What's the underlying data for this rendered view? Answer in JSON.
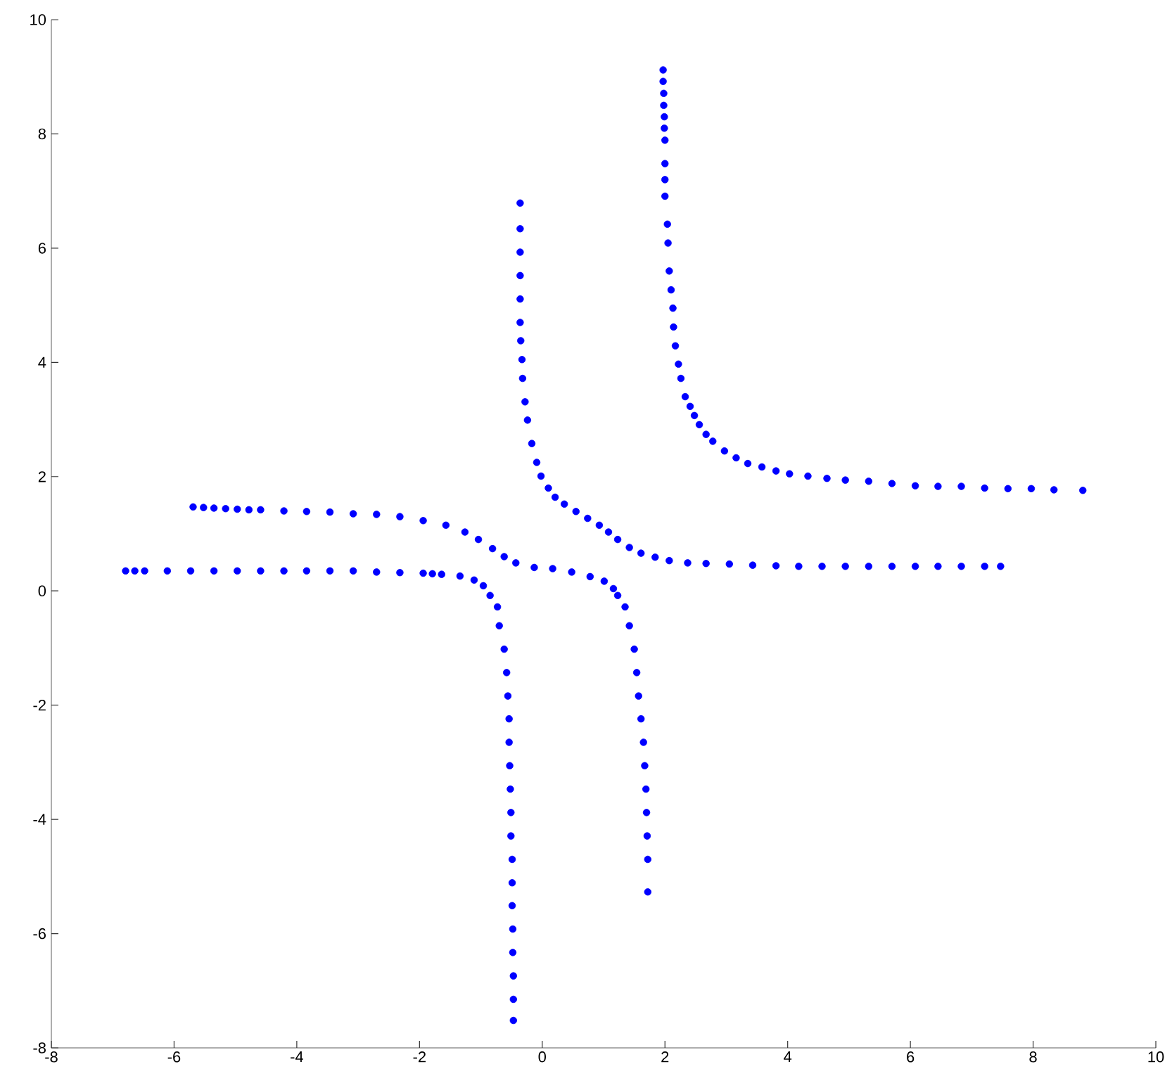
{
  "chart_data": {
    "type": "scatter",
    "marker": "circle",
    "xlim": [
      -8,
      10
    ],
    "ylim": [
      -8,
      10
    ],
    "xticks": [
      -8,
      -6,
      -4,
      -2,
      0,
      2,
      4,
      6,
      8,
      10
    ],
    "yticks": [
      -8,
      -6,
      -4,
      -2,
      0,
      2,
      4,
      6,
      8,
      10
    ],
    "series": [
      {
        "color": "#0000ff",
        "x": [
          1.97,
          1.97,
          1.98,
          1.98,
          1.99,
          1.99,
          2.0,
          2.0,
          2.0,
          2.0,
          2.04,
          2.05,
          2.07,
          2.1,
          2.13,
          2.14,
          2.17,
          2.22,
          2.26,
          2.33,
          2.41,
          2.48,
          2.56,
          2.67,
          2.78,
          2.97,
          3.16,
          3.35,
          3.58,
          3.81,
          4.03,
          4.33,
          4.64,
          4.94,
          5.32,
          5.7,
          6.08,
          6.45,
          6.83,
          7.21,
          7.59,
          7.97,
          8.34,
          8.81
        ],
        "values": [
          9.12,
          8.92,
          8.71,
          8.5,
          8.3,
          8.1,
          7.89,
          7.48,
          7.2,
          6.91,
          6.42,
          6.09,
          5.6,
          5.27,
          4.95,
          4.62,
          4.29,
          3.97,
          3.72,
          3.4,
          3.23,
          3.07,
          2.91,
          2.74,
          2.62,
          2.45,
          2.33,
          2.23,
          2.17,
          2.1,
          2.05,
          2.01,
          1.97,
          1.94,
          1.92,
          1.88,
          1.84,
          1.83,
          1.83,
          1.8,
          1.79,
          1.79,
          1.77,
          1.76
        ]
      },
      {
        "color": "#0000ff",
        "x": [
          -0.36,
          -0.36,
          -0.36,
          -0.36,
          -0.36,
          -0.36,
          -0.35,
          -0.33,
          -0.32,
          -0.28,
          -0.24,
          -0.17,
          -0.09,
          -0.02,
          0.1,
          0.21,
          0.36,
          0.55,
          0.74,
          0.93,
          1.08,
          1.23,
          1.42,
          1.61,
          1.84,
          2.07,
          2.37,
          2.67,
          3.05,
          3.43,
          3.81,
          4.18,
          4.56,
          4.94,
          5.32,
          5.7,
          6.08,
          6.45,
          6.83,
          7.21,
          7.47
        ],
        "values": [
          6.79,
          6.34,
          5.93,
          5.52,
          5.11,
          4.7,
          4.38,
          4.05,
          3.72,
          3.31,
          2.99,
          2.58,
          2.25,
          2.01,
          1.8,
          1.64,
          1.52,
          1.39,
          1.27,
          1.15,
          1.03,
          0.9,
          0.76,
          0.66,
          0.59,
          0.53,
          0.49,
          0.48,
          0.47,
          0.45,
          0.44,
          0.43,
          0.43,
          0.43,
          0.43,
          0.43,
          0.43,
          0.43,
          0.43,
          0.43,
          0.43
        ]
      },
      {
        "color": "#0000ff",
        "x": [
          -5.69,
          -5.52,
          -5.35,
          -5.16,
          -4.97,
          -4.78,
          -4.59,
          -4.21,
          -3.84,
          -3.46,
          -3.08,
          -2.7,
          -2.32,
          -1.94,
          -1.57,
          -1.26,
          -1.04,
          -0.81,
          -0.62,
          -0.43,
          -0.13,
          0.17,
          0.48,
          0.78,
          1.01,
          1.16,
          1.23,
          1.35,
          1.42,
          1.5,
          1.54,
          1.57,
          1.61,
          1.65,
          1.67,
          1.69,
          1.7,
          1.71,
          1.72,
          1.72
        ],
        "values": [
          1.47,
          1.46,
          1.45,
          1.44,
          1.43,
          1.42,
          1.42,
          1.4,
          1.39,
          1.38,
          1.35,
          1.34,
          1.3,
          1.23,
          1.15,
          1.03,
          0.9,
          0.74,
          0.6,
          0.49,
          0.41,
          0.39,
          0.33,
          0.25,
          0.17,
          0.04,
          -0.08,
          -0.28,
          -0.61,
          -1.02,
          -1.43,
          -1.84,
          -2.24,
          -2.65,
          -3.06,
          -3.47,
          -3.88,
          -4.29,
          -4.7,
          -5.27
        ]
      },
      {
        "color": "#0000ff",
        "x": [
          -6.79,
          -6.64,
          -6.48,
          -6.11,
          -5.73,
          -5.35,
          -4.97,
          -4.59,
          -4.21,
          -3.84,
          -3.46,
          -3.08,
          -2.7,
          -2.32,
          -1.94,
          -1.79,
          -1.64,
          -1.34,
          -1.11,
          -0.96,
          -0.85,
          -0.73,
          -0.7,
          -0.62,
          -0.58,
          -0.56,
          -0.54,
          -0.54,
          -0.53,
          -0.52,
          -0.51,
          -0.51,
          -0.49,
          -0.49,
          -0.49,
          -0.48,
          -0.48,
          -0.47,
          -0.47,
          -0.47
        ],
        "values": [
          0.35,
          0.35,
          0.35,
          0.35,
          0.35,
          0.35,
          0.35,
          0.35,
          0.35,
          0.35,
          0.35,
          0.35,
          0.33,
          0.32,
          0.31,
          0.3,
          0.29,
          0.26,
          0.19,
          0.09,
          -0.08,
          -0.28,
          -0.61,
          -1.02,
          -1.43,
          -1.84,
          -2.24,
          -2.65,
          -3.06,
          -3.47,
          -3.88,
          -4.29,
          -4.7,
          -5.11,
          -5.51,
          -5.92,
          -6.33,
          -6.74,
          -7.15,
          -7.52
        ]
      }
    ]
  }
}
